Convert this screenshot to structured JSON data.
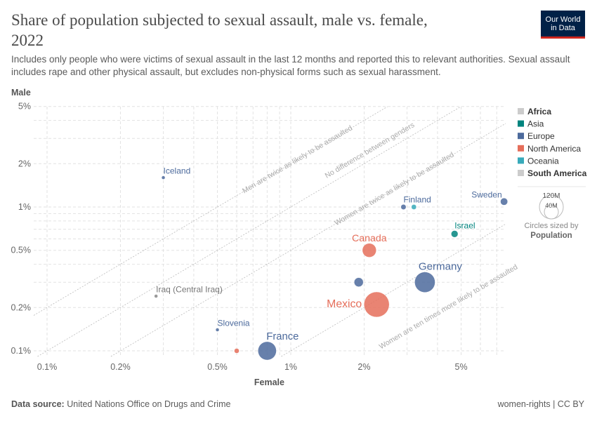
{
  "header": {
    "title": "Share of population subjected to sexual assault, male vs. female, 2022",
    "subtitle": "Includes only people who were victims of sexual assault in the last 12 months and reported this to relevant authorities. Sexual assault includes rape and other physical assault, but excludes non-physical forms such as sexual harassment.",
    "logo_line1": "Our World",
    "logo_line2": "in Data"
  },
  "footer": {
    "source_label": "Data source:",
    "source": "United Nations Office on Drugs and Crime",
    "license": "women-rights | CC BY"
  },
  "chart_data": {
    "type": "scatter",
    "xlabel": "Female",
    "ylabel": "Male",
    "x_scale": "log",
    "y_scale": "log",
    "x_unit": "%",
    "y_unit": "%",
    "xlim": [
      0.09,
      7.6
    ],
    "ylim": [
      0.091,
      5
    ],
    "x_ticks": [
      "0.1%",
      "0.2%",
      "0.5%",
      "1%",
      "2%",
      "5%"
    ],
    "x_tick_values": [
      0.1,
      0.2,
      0.5,
      1,
      2,
      5
    ],
    "y_ticks": [
      "0.1%",
      "0.2%",
      "0.5%",
      "1%",
      "2%",
      "5%"
    ],
    "y_tick_values": [
      0.1,
      0.2,
      0.5,
      1,
      2,
      5
    ],
    "grid": true,
    "reference_lines": [
      {
        "ratio_male_to_female": 2,
        "label": "Men are twice as likely to be assaulted"
      },
      {
        "ratio_male_to_female": 1,
        "label": "No difference between genders"
      },
      {
        "ratio_male_to_female": 0.5,
        "label": "Women are twice as likely to be assaulted"
      },
      {
        "ratio_male_to_female": 0.1,
        "label": "Women are ten times more likely to be assaulted"
      }
    ],
    "legend": {
      "placement": "right",
      "items": [
        {
          "name": "Africa",
          "color": "#cccccc",
          "bold": true
        },
        {
          "name": "Asia",
          "color": "#00847e",
          "bold": false
        },
        {
          "name": "Europe",
          "color": "#4c6a9c",
          "bold": false
        },
        {
          "name": "North America",
          "color": "#e56e5a",
          "bold": false
        },
        {
          "name": "Oceania",
          "color": "#38aaba",
          "bold": false
        },
        {
          "name": "South America",
          "color": "#cccccc",
          "bold": true
        }
      ],
      "size_legend": {
        "large": "120M",
        "small": "40M",
        "caption": "Circles sized by",
        "variable": "Population"
      }
    },
    "points": [
      {
        "label": "Iceland",
        "region": "Europe",
        "female": 0.3,
        "male": 1.6,
        "population_m": 0.4
      },
      {
        "label": "Iraq (Central Iraq)",
        "region": "Asia",
        "female": 0.28,
        "male": 0.24,
        "population_m": 0.4,
        "muted": true
      },
      {
        "label": "Slovenia",
        "region": "Europe",
        "female": 0.5,
        "male": 0.14,
        "population_m": 2.1
      },
      {
        "label": "",
        "region": "North America",
        "female": 0.6,
        "male": 0.1,
        "population_m": 5
      },
      {
        "label": "France",
        "region": "Europe",
        "female": 0.8,
        "male": 0.1,
        "population_m": 68
      },
      {
        "label": "",
        "region": "Europe",
        "female": 1.9,
        "male": 0.3,
        "population_m": 17
      },
      {
        "label": "Mexico",
        "region": "North America",
        "female": 2.25,
        "male": 0.21,
        "population_m": 128
      },
      {
        "label": "Canada",
        "region": "North America",
        "female": 2.1,
        "male": 0.5,
        "population_m": 39
      },
      {
        "label": "Germany",
        "region": "Europe",
        "female": 3.55,
        "male": 0.3,
        "population_m": 84
      },
      {
        "label": "Finland",
        "region": "Europe",
        "female": 2.9,
        "male": 1.0,
        "population_m": 5.5
      },
      {
        "label": "",
        "region": "Oceania",
        "female": 3.2,
        "male": 1.0,
        "population_m": 5.2
      },
      {
        "label": "Israel",
        "region": "Asia",
        "female": 4.7,
        "male": 0.65,
        "population_m": 9.5
      },
      {
        "label": "Sweden",
        "region": "Europe",
        "female": 7.5,
        "male": 1.09,
        "population_m": 10.5
      }
    ]
  }
}
